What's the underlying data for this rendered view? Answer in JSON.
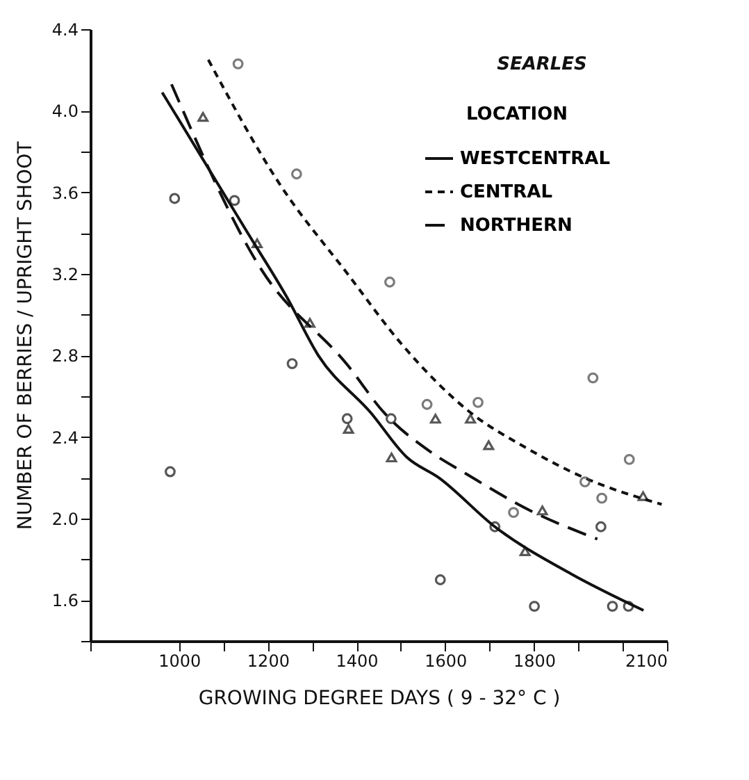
{
  "chart_data": {
    "type": "scatter",
    "xlabel": "GROWING DEGREE DAYS ( 9 - 32° C )",
    "ylabel": "NUMBER OF BERRIES / UPRIGHT SHOOT",
    "legend_title": "LOCATION",
    "annotations": [
      "SEARLES"
    ],
    "legend": "top right",
    "xlim": [
      800,
      2100
    ],
    "ylim": [
      1.4,
      4.4
    ],
    "xticks": [
      {
        "value": 800,
        "label": null
      },
      1000,
      {
        "value": 1100,
        "label": null
      },
      1200,
      {
        "value": 1300,
        "label": null
      },
      1400,
      {
        "value": 1500,
        "label": null
      },
      1600,
      {
        "value": 1700,
        "label": null
      },
      1800,
      {
        "value": 1900,
        "label": null
      },
      {
        "value": 2000,
        "label": null
      },
      2100
    ],
    "yticks": [
      {
        "value": 1.4,
        "label": null
      },
      {
        "value": 1.6,
        "label": "1.6"
      },
      {
        "value": 1.8,
        "label": null
      },
      {
        "value": 2.0,
        "label": "2.0"
      },
      {
        "value": 2.2,
        "label": null
      },
      {
        "value": 2.4,
        "label": "2.4"
      },
      {
        "value": 2.6,
        "label": null
      },
      {
        "value": 2.8,
        "label": "2.8"
      },
      {
        "value": 3.0,
        "label": null
      },
      {
        "value": 3.2,
        "label": "3.2"
      },
      {
        "value": 3.4,
        "label": null
      },
      {
        "value": 3.6,
        "label": "3.6"
      },
      {
        "value": 3.8,
        "label": null
      },
      {
        "value": 4.0,
        "label": "4.0"
      },
      {
        "value": 4.4,
        "label": "4.4"
      }
    ],
    "series": [
      {
        "name": "WESTCENTRAL",
        "type": "line",
        "line_style": "solid",
        "color": "#111111",
        "x": [
          962,
          1155,
          1242,
          1314,
          1432,
          1514,
          1586,
          1712,
          1883,
          2047
        ],
        "values": [
          4.09,
          3.4,
          3.09,
          2.8,
          2.52,
          2.3,
          2.2,
          1.96,
          1.73,
          1.55
        ]
      },
      {
        "name": "CENTRAL",
        "type": "line",
        "line_style": "dotted",
        "color": "#111111",
        "x": [
          1066,
          1227,
          1380,
          1504,
          1657,
          1780,
          1914,
          2088
        ],
        "values": [
          4.25,
          3.64,
          3.2,
          2.85,
          2.52,
          2.35,
          2.2,
          2.07
        ]
      },
      {
        "name": "NORTHERN",
        "type": "line",
        "line_style": "dashed",
        "color": "#111111",
        "x": [
          983,
          1186,
          1381,
          1462,
          1565,
          1647,
          1791,
          1943
        ],
        "values": [
          4.13,
          3.22,
          2.75,
          2.52,
          2.33,
          2.22,
          2.04,
          1.9
        ]
      },
      {
        "type": "scatter",
        "marker": "circle",
        "color": "#111111",
        "x": [
          990,
          1125,
          1255,
          1379,
          1478,
          980,
          1589,
          1712,
          1801,
          1951,
          1977,
          2013
        ],
        "values": [
          3.57,
          3.56,
          2.76,
          2.49,
          2.49,
          2.23,
          1.7,
          1.96,
          1.57,
          1.96,
          1.57,
          1.57
        ]
      },
      {
        "type": "scatter",
        "marker": "circle",
        "color": "#444444",
        "x": [
          1133,
          1265,
          1475,
          1559,
          1674,
          1754,
          1915,
          1933,
          1953,
          2015
        ],
        "values": [
          4.23,
          3.69,
          3.16,
          2.56,
          2.57,
          2.03,
          2.18,
          2.69,
          2.1,
          2.29
        ]
      },
      {
        "type": "scatter",
        "marker": "triangle",
        "color": "#111111",
        "x": [
          1054,
          1176,
          1295,
          1382,
          1479,
          1578,
          1657,
          1698,
          1780,
          1819,
          2046
        ],
        "values": [
          3.97,
          3.35,
          2.96,
          2.44,
          2.3,
          2.49,
          2.49,
          2.36,
          1.84,
          2.04,
          2.11
        ]
      }
    ]
  }
}
